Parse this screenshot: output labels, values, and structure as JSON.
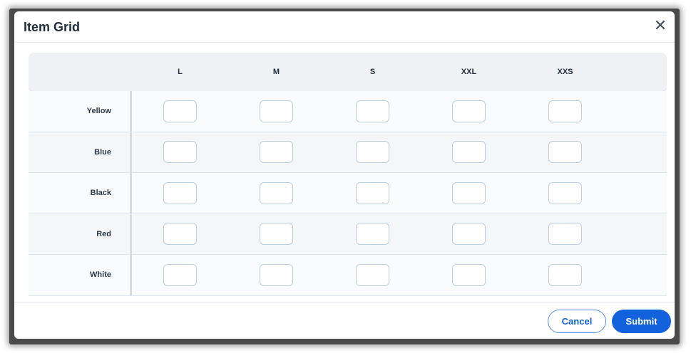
{
  "dialog": {
    "title": "Item Grid",
    "close_icon": "close-icon"
  },
  "grid": {
    "columns": [
      "L",
      "M",
      "S",
      "XXL",
      "XXS"
    ],
    "rows": [
      "Yellow",
      "Blue",
      "Black",
      "Red",
      "White"
    ]
  },
  "footer": {
    "cancel_label": "Cancel",
    "submit_label": "Submit"
  },
  "colors": {
    "primary": "#1262dd",
    "title": "#1f2d3d"
  }
}
